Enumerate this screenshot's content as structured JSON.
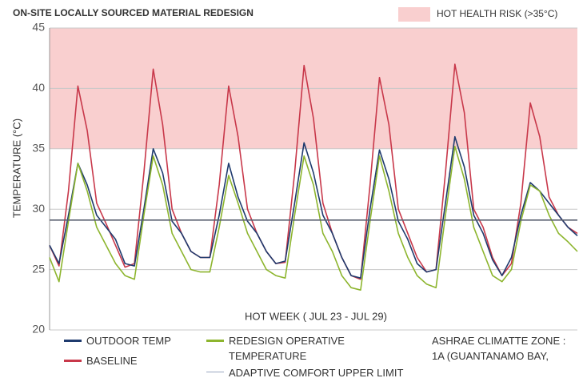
{
  "chart_data": {
    "type": "line",
    "title": "ON-SITE LOCALLY SOURCED MATERIAL REDESIGN",
    "x_label": "HOT WEEK ( JUL 23 - JUL 29)",
    "y_label": "TEMPERATURE (°C)",
    "annotation": [
      "ASHRAE CLIMATTE ZONE :",
      "1A (GUANTANAMO BAY,"
    ],
    "bands": [
      {
        "from": 35,
        "to": 45,
        "label": "HOT HEALTH RISK (>35°C)",
        "color": "#f9cfcf"
      }
    ],
    "xlim": [
      0,
      168
    ],
    "ylim": [
      20,
      45
    ],
    "yticks": [
      20,
      25,
      30,
      35,
      40,
      45
    ],
    "grid": true,
    "x": [
      0,
      3,
      6,
      9,
      12,
      15,
      18,
      21,
      24,
      27,
      30,
      33,
      36,
      39,
      42,
      45,
      48,
      51,
      54,
      57,
      60,
      63,
      66,
      69,
      72,
      75,
      78,
      81,
      84,
      87,
      90,
      93,
      96,
      99,
      102,
      105,
      108,
      111,
      114,
      117,
      120,
      123,
      126,
      129,
      132,
      135,
      138,
      141,
      144,
      147,
      150,
      153,
      156,
      159,
      162,
      165,
      168
    ],
    "series": [
      {
        "name": "BASELINE",
        "color": "#c8384a",
        "values": [
          27,
          25.3,
          31.5,
          40.2,
          36.5,
          30.5,
          28.8,
          27,
          25.2,
          25.5,
          33,
          41.6,
          37,
          30,
          28,
          26.5,
          26,
          26,
          32,
          40.2,
          36,
          30,
          28,
          26.5,
          25.5,
          25.6,
          33,
          41.9,
          37.5,
          30.5,
          28,
          26,
          24.5,
          24.2,
          32,
          40.9,
          37,
          30,
          28,
          26,
          24.8,
          25,
          33,
          42,
          38,
          30,
          28.5,
          26,
          24.5,
          25.5,
          30.5,
          38.8,
          36,
          31,
          29.5,
          28.5,
          28
        ]
      },
      {
        "name": "OUTDOOR TEMP",
        "color": "#1f3b6e",
        "values": [
          27,
          25.5,
          29.5,
          33.8,
          32,
          29.5,
          28.5,
          27.5,
          25.5,
          25.3,
          30,
          35,
          33,
          29,
          28,
          26.5,
          26,
          26,
          29.5,
          33.8,
          31,
          29,
          28,
          26.5,
          25.5,
          25.7,
          30.5,
          35.5,
          33,
          29.5,
          28,
          26,
          24.5,
          24.3,
          30,
          34.9,
          32.5,
          29,
          27.5,
          25.5,
          24.8,
          25,
          30.5,
          36,
          33.5,
          29.5,
          28,
          25.8,
          24.5,
          26,
          29.5,
          32.2,
          31.5,
          30.5,
          29.5,
          28.5,
          27.8
        ]
      },
      {
        "name": "REDESIGN OPERATIVE TEMPERATURE",
        "color": "#8db52e",
        "values": [
          26,
          24,
          29,
          33.8,
          31.5,
          28.5,
          27,
          25.5,
          24.5,
          24.2,
          29.5,
          34.4,
          32,
          28,
          26.5,
          25,
          24.8,
          24.8,
          28.5,
          32.8,
          30.5,
          28,
          26.5,
          25,
          24.5,
          24.3,
          29.5,
          34.4,
          32,
          28,
          26.5,
          24.5,
          23.5,
          23.3,
          29,
          34.4,
          31.5,
          28,
          26,
          24.5,
          23.8,
          23.5,
          29.5,
          35.2,
          32.5,
          28.5,
          26.5,
          24.5,
          24,
          25,
          29,
          32,
          31.5,
          29.5,
          28,
          27.3,
          26.5
        ]
      },
      {
        "name": "ADAPTIVE COMFORT UPPER LIMIT",
        "color": "#5a6070",
        "values": [
          29.1,
          29.1,
          29.1,
          29.1,
          29.1,
          29.1,
          29.1,
          29.1,
          29.1,
          29.1,
          29.1,
          29.1,
          29.1,
          29.1,
          29.1,
          29.1,
          29.1,
          29.1,
          29.1,
          29.1,
          29.1,
          29.1,
          29.1,
          29.1,
          29.1,
          29.1,
          29.1,
          29.1,
          29.1,
          29.1,
          29.1,
          29.1,
          29.1,
          29.1,
          29.1,
          29.1,
          29.1,
          29.1,
          29.1,
          29.1,
          29.1,
          29.1,
          29.1,
          29.1,
          29.1,
          29.1,
          29.1,
          29.1,
          29.1,
          29.1,
          29.1,
          29.1,
          29.1,
          29.1,
          29.1,
          29.1,
          29.1
        ]
      }
    ]
  }
}
